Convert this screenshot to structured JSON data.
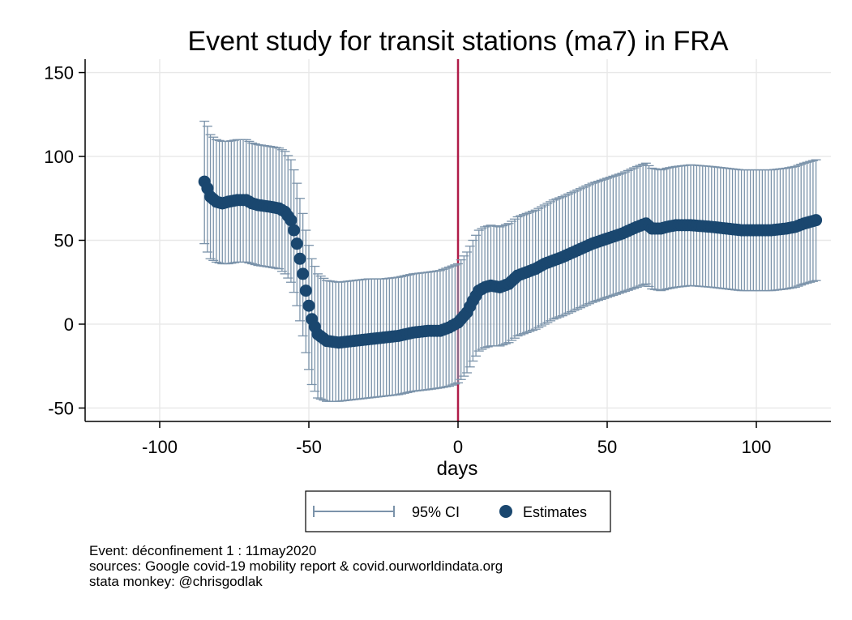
{
  "chart_data": {
    "type": "scatter",
    "title": "Event study for transit stations (ma7) in FRA",
    "xlabel": "days",
    "ylabel": "",
    "xlim": [
      -125,
      125
    ],
    "ylim": [
      -58,
      158
    ],
    "xticks": [
      -100,
      -50,
      0,
      50,
      100
    ],
    "xtick_labels": [
      "-100",
      "-50",
      "0",
      "50",
      "100"
    ],
    "yticks": [
      -50,
      0,
      50,
      100,
      150
    ],
    "ytick_labels": [
      "-50",
      "0",
      "50",
      "100",
      "150"
    ],
    "grid": true,
    "event_line_x": 0,
    "legend_position": "bottom",
    "series": [
      {
        "name": "95% CI",
        "kind": "error-bar",
        "color": "#7b93aa"
      },
      {
        "name": "Estimates",
        "kind": "marker",
        "color": "#1a476f"
      }
    ],
    "knots": {
      "x": [
        -85,
        -84,
        -83,
        -81,
        -79,
        -77,
        -74,
        -71,
        -69,
        -67,
        -63,
        -60,
        -58,
        -56,
        -55,
        -54,
        -53,
        -52,
        -51,
        -50,
        -49,
        -47,
        -44,
        -40,
        -35,
        -30,
        -25,
        -20,
        -15,
        -10,
        -6,
        -3,
        0,
        3,
        5,
        7,
        9,
        11,
        14,
        17,
        20,
        23,
        26,
        29,
        32,
        35,
        40,
        45,
        50,
        55,
        60,
        63,
        65,
        68,
        70,
        73,
        78,
        85,
        90,
        95,
        100,
        105,
        110,
        113,
        116,
        120
      ],
      "y": [
        85,
        81,
        76,
        73,
        72,
        73,
        74,
        74,
        72,
        71,
        70,
        69,
        67,
        62,
        56,
        48,
        39,
        30,
        20,
        11,
        3,
        -6,
        -10,
        -11,
        -10,
        -9,
        -8,
        -7,
        -5,
        -4,
        -4,
        -2,
        1,
        7,
        14,
        20,
        22,
        23,
        22,
        24,
        29,
        31,
        33,
        36,
        38,
        40,
        44,
        48,
        51,
        54,
        58,
        60,
        57,
        57,
        58,
        59,
        59,
        58,
        57,
        56,
        56,
        56,
        57,
        58,
        60,
        62
      ],
      "lo": [
        48,
        43,
        39,
        37,
        36,
        36,
        37,
        37,
        36,
        35,
        34,
        33,
        30,
        25,
        19,
        11,
        2,
        -7,
        -17,
        -27,
        -36,
        -44,
        -46,
        -46,
        -45,
        -44,
        -43,
        -42,
        -40,
        -39,
        -38,
        -37,
        -35,
        -29,
        -22,
        -16,
        -14,
        -13,
        -13,
        -11,
        -7,
        -5,
        -3,
        0,
        3,
        5,
        9,
        13,
        16,
        19,
        22,
        24,
        21,
        20,
        21,
        22,
        23,
        22,
        21,
        20,
        20,
        20,
        21,
        22,
        24,
        26
      ],
      "hi": [
        121,
        118,
        113,
        110,
        109,
        109,
        110,
        110,
        108,
        107,
        106,
        105,
        103,
        98,
        92,
        84,
        75,
        66,
        56,
        47,
        39,
        30,
        26,
        25,
        26,
        27,
        27,
        28,
        30,
        31,
        32,
        34,
        36,
        43,
        50,
        56,
        58,
        59,
        58,
        60,
        64,
        66,
        68,
        71,
        74,
        76,
        80,
        84,
        87,
        90,
        94,
        96,
        93,
        92,
        93,
        94,
        95,
        94,
        93,
        92,
        92,
        92,
        93,
        94,
        96,
        98
      ]
    }
  },
  "notes": {
    "line1": "Event: déconfinement 1 : 11may2020",
    "line2": "sources: Google covid-19 mobility report & covid.ourworldindata.org",
    "line3": "stata monkey: @chrisgodlak"
  }
}
